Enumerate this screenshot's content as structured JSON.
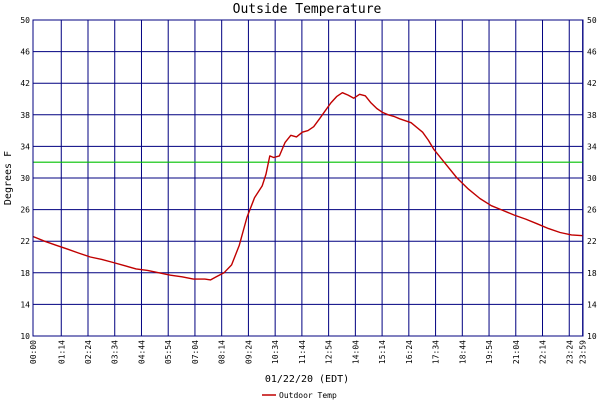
{
  "chart_data": {
    "type": "line",
    "title": "Outside Temperature",
    "xlabel": "01/22/20 (EDT)",
    "ylabel": "Degrees F",
    "ylim": [
      10,
      50
    ],
    "yticks": [
      10,
      14,
      18,
      22,
      26,
      30,
      34,
      38,
      42,
      46,
      50
    ],
    "xlim": [
      "00:00",
      "24:00"
    ],
    "xtick_labels": [
      "00:00",
      "01:14",
      "02:24",
      "03:34",
      "04:44",
      "05:54",
      "07:04",
      "08:14",
      "09:24",
      "10:34",
      "11:44",
      "12:54",
      "14:04",
      "15:14",
      "16:24",
      "17:34",
      "18:44",
      "19:54",
      "21:04",
      "22:14",
      "23:24",
      "23:59"
    ],
    "grid": true,
    "legend": "bottom-center",
    "reference_line": {
      "y": 32,
      "color": "#00c000"
    },
    "series": [
      {
        "name": "Outdoor Temp",
        "color": "#c00000",
        "x": [
          "00:00",
          "00:30",
          "01:00",
          "01:30",
          "02:00",
          "02:30",
          "03:00",
          "03:30",
          "04:00",
          "04:30",
          "05:00",
          "05:30",
          "06:00",
          "06:30",
          "07:00",
          "07:30",
          "07:45",
          "08:00",
          "08:20",
          "08:40",
          "09:00",
          "09:20",
          "09:40",
          "10:00",
          "10:10",
          "10:20",
          "10:30",
          "10:45",
          "11:00",
          "11:15",
          "11:30",
          "11:45",
          "12:00",
          "12:15",
          "12:30",
          "12:45",
          "13:00",
          "13:15",
          "13:30",
          "13:45",
          "14:00",
          "14:15",
          "14:30",
          "14:45",
          "15:00",
          "15:15",
          "15:30",
          "15:45",
          "16:00",
          "16:30",
          "17:00",
          "17:15",
          "17:30",
          "18:00",
          "18:30",
          "19:00",
          "19:30",
          "20:00",
          "20:30",
          "21:00",
          "21:30",
          "22:00",
          "22:30",
          "23:00",
          "23:30",
          "24:00"
        ],
        "y": [
          22.6,
          22.0,
          21.5,
          21.0,
          20.5,
          20.0,
          19.7,
          19.3,
          18.9,
          18.5,
          18.3,
          18.0,
          17.7,
          17.5,
          17.2,
          17.2,
          17.1,
          17.5,
          18.0,
          19.0,
          21.5,
          25.0,
          27.5,
          29.0,
          30.5,
          32.8,
          32.6,
          32.8,
          34.5,
          35.4,
          35.2,
          35.8,
          36.0,
          36.5,
          37.5,
          38.5,
          39.5,
          40.3,
          40.8,
          40.5,
          40.1,
          40.6,
          40.4,
          39.5,
          38.8,
          38.3,
          38.0,
          37.8,
          37.5,
          37.0,
          35.8,
          34.8,
          33.6,
          31.8,
          30.0,
          28.6,
          27.4,
          26.5,
          25.9,
          25.3,
          24.8,
          24.2,
          23.6,
          23.1,
          22.8,
          22.7
        ]
      }
    ]
  }
}
